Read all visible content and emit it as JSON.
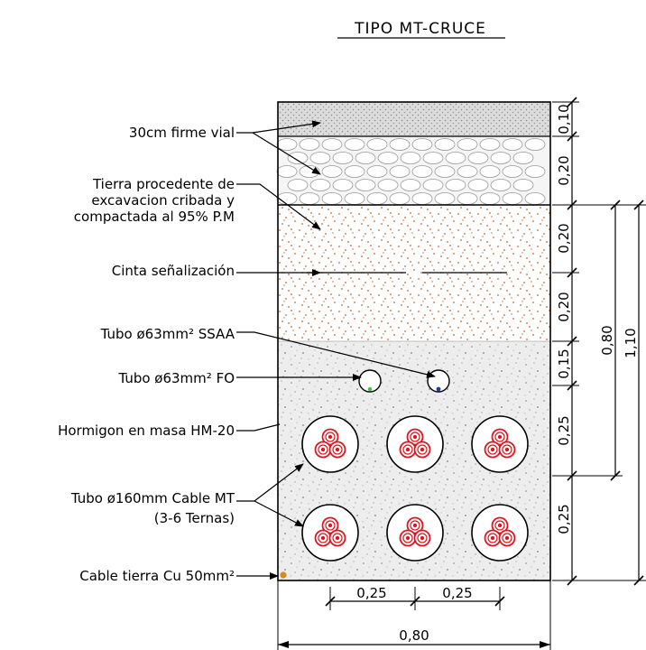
{
  "title": "TIPO MT-CRUCE",
  "labels": {
    "firme": "30cm firme vial",
    "tierra_1": "Tierra procedente de",
    "tierra_2": "excavacion cribada y",
    "tierra_3": "compactada al 95% P.M",
    "cinta": "Cinta señalización",
    "tubo_ssaa": "Tubo ø63mm² SSAA",
    "tubo_fo": "Tubo ø63mm² FO",
    "hormigon": "Hormigon en masa HM-20",
    "tubo_mt_1": "Tubo ø160mm Cable MT",
    "tubo_mt_2": "(3-6 Ternas)",
    "cable_tierra": "Cable tierra Cu 50mm²"
  },
  "dims_right": [
    "0,10",
    "0,20",
    "0,20",
    "0,20",
    "0,15",
    "0,25",
    "0,25"
  ],
  "dims_total": [
    "0,80",
    "1,10"
  ],
  "dims_bottom": [
    "0,25",
    "0,25"
  ],
  "dim_width": "0,80",
  "colors": {
    "asphalt": "#d9d9d9",
    "gravel": "#f2f2f2",
    "soil_dots": "#c8642a",
    "concrete": "#ececec",
    "cable_red": "#e0141e",
    "fo_green": "#33cc33",
    "ssaa_blue": "#1a3fa0",
    "earth_cable": "#d98a1a"
  }
}
